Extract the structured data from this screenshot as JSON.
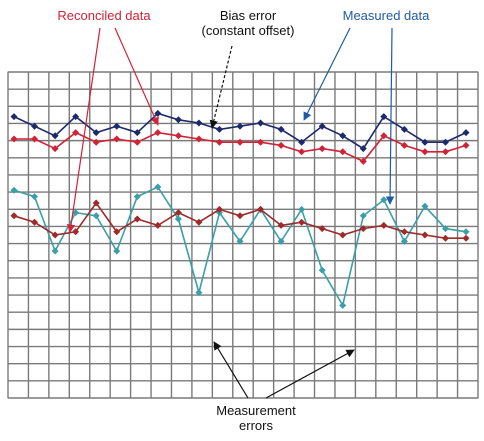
{
  "colors": {
    "reconciled": "#d22236",
    "measured": "#1f5aa8",
    "black": "#111111",
    "series_upper_measured": "#1c2a6b",
    "series_upper_reconciled": "#d22236",
    "series_lower_measured": "#3a9fa8",
    "series_lower_reconciled": "#9e2a2a",
    "grid": "#7a7a7a"
  },
  "annotations": {
    "reconciled": "Reconciled data",
    "bias_line1": "Bias error",
    "bias_line2": "(constant offset)",
    "measured": "Measured data",
    "errors_line1": "Measurement",
    "errors_line2": "errors"
  },
  "chart_data": {
    "type": "line",
    "title": "",
    "xlabel": "",
    "ylabel": "",
    "grid": true,
    "x": [
      1,
      2,
      3,
      4,
      5,
      6,
      7,
      8,
      9,
      10,
      11,
      12,
      13,
      14,
      15,
      16,
      17,
      18,
      19,
      20,
      21,
      22,
      23
    ],
    "ylim": [
      0,
      100
    ],
    "series": [
      {
        "key": "upper_measured",
        "values": [
          87,
          84,
          81,
          87,
          82,
          84,
          82,
          88,
          86,
          85,
          83,
          84,
          85,
          83,
          79,
          84,
          81,
          77,
          87,
          83,
          79,
          79,
          82
        ]
      },
      {
        "key": "upper_reconciled",
        "values": [
          80,
          80,
          77,
          82,
          79,
          80,
          79,
          82,
          81,
          80,
          79,
          79,
          79,
          78,
          76,
          77,
          76,
          73,
          81,
          78,
          76,
          76,
          78
        ]
      },
      {
        "key": "lower_measured",
        "values": [
          64,
          62,
          45,
          57,
          56,
          45,
          62,
          65,
          55,
          32,
          57,
          48,
          58,
          48,
          58,
          39,
          28,
          56,
          61,
          48,
          59,
          52,
          51
        ]
      },
      {
        "key": "lower_reconciled",
        "values": [
          56,
          54,
          50,
          51,
          60,
          51,
          55,
          53,
          57,
          54,
          58,
          56,
          58,
          53,
          54,
          52,
          50,
          52,
          53,
          51,
          50,
          49,
          49
        ]
      }
    ]
  }
}
